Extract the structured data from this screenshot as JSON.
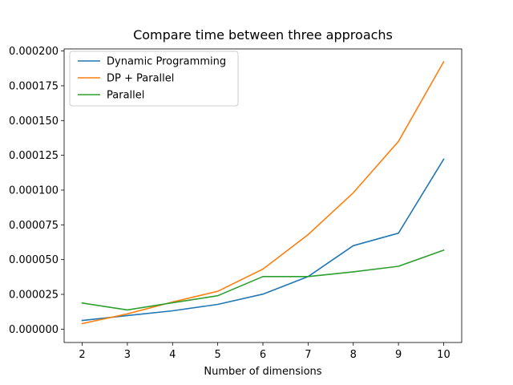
{
  "chart_data": {
    "type": "line",
    "title": "Compare time between three approachs",
    "xlabel": "Number of dimensions",
    "ylabel": "",
    "x": [
      2,
      3,
      4,
      5,
      6,
      7,
      8,
      9,
      10
    ],
    "xlim": [
      1.6,
      10.4
    ],
    "ylim": [
      -9.6e-06,
      0.0002015
    ],
    "xticks": [
      2,
      3,
      4,
      5,
      6,
      7,
      8,
      9,
      10
    ],
    "yticks": [
      0,
      2.5e-05,
      5e-05,
      7.5e-05,
      0.0001,
      0.000125,
      0.00015,
      0.000175,
      0.0002
    ],
    "ytick_labels": [
      "0.000000",
      "0.000025",
      "0.000050",
      "0.000075",
      "0.000100",
      "0.000125",
      "0.000150",
      "0.000175",
      "0.000200"
    ],
    "grid": false,
    "legend_position": "top-left",
    "series": [
      {
        "name": "Dynamic Programming",
        "color": "#1f77b4",
        "values": [
          6.2e-06,
          9.8e-06,
          1.32e-05,
          1.78e-05,
          2.52e-05,
          3.78e-05,
          6e-05,
          6.9e-05,
          0.0001222
        ]
      },
      {
        "name": "DP + Parallel",
        "color": "#ff7f0e",
        "values": [
          4e-06,
          1.1e-05,
          1.95e-05,
          2.72e-05,
          4.32e-05,
          6.8e-05,
          9.8e-05,
          0.000135,
          0.0001922
        ]
      },
      {
        "name": "Parallel",
        "color": "#2ca02c",
        "values": [
          1.88e-05,
          1.38e-05,
          1.9e-05,
          2.4e-05,
          3.78e-05,
          3.78e-05,
          4.12e-05,
          4.52e-05,
          5.68e-05
        ]
      }
    ]
  }
}
